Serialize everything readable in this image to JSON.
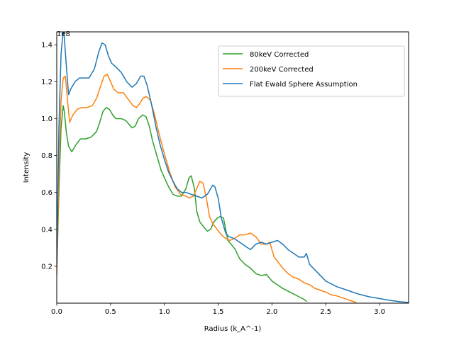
{
  "chart_data": {
    "type": "line",
    "xlabel": "Radius (k_A^-1)",
    "ylabel": "Intensity",
    "offset_label": "1e8",
    "xlim": [
      0,
      3.27
    ],
    "ylim": [
      0,
      1.47
    ],
    "x_ticks": [
      0.0,
      0.5,
      1.0,
      1.5,
      2.0,
      2.5,
      3.0
    ],
    "x_tick_labels": [
      "0.0",
      "0.5",
      "1.0",
      "1.5",
      "2.0",
      "2.5",
      "3.0"
    ],
    "y_ticks": [
      0.2,
      0.4,
      0.6,
      0.8,
      1.0,
      1.2,
      1.4
    ],
    "y_tick_labels": [
      "0.2",
      "0.4",
      "0.6",
      "0.8",
      "1.0",
      "1.2",
      "1.4"
    ],
    "grid": false,
    "legend_position": "top-right",
    "series": [
      {
        "name": "80keV Corrected",
        "color": "#2ca02c",
        "x": [
          0.0,
          0.02,
          0.04,
          0.06,
          0.07,
          0.09,
          0.11,
          0.14,
          0.18,
          0.22,
          0.27,
          0.32,
          0.37,
          0.4,
          0.43,
          0.46,
          0.49,
          0.52,
          0.55,
          0.6,
          0.64,
          0.67,
          0.7,
          0.73,
          0.76,
          0.8,
          0.83,
          0.86,
          0.89,
          0.93,
          0.97,
          1.0,
          1.04,
          1.08,
          1.12,
          1.16,
          1.2,
          1.23,
          1.25,
          1.28,
          1.3,
          1.33,
          1.37,
          1.4,
          1.43,
          1.46,
          1.49,
          1.52,
          1.55,
          1.57,
          1.59,
          1.62,
          1.66,
          1.7,
          1.75,
          1.8,
          1.85,
          1.9,
          1.95,
          2.0,
          2.05,
          2.1,
          2.15,
          2.2,
          2.25,
          2.3,
          2.32
        ],
        "y": [
          0.16,
          0.6,
          0.95,
          1.07,
          1.04,
          0.92,
          0.85,
          0.82,
          0.86,
          0.89,
          0.89,
          0.9,
          0.93,
          0.98,
          1.04,
          1.06,
          1.05,
          1.02,
          1.0,
          1.0,
          0.99,
          0.97,
          0.95,
          0.96,
          1.0,
          1.02,
          1.01,
          0.96,
          0.88,
          0.8,
          0.72,
          0.68,
          0.63,
          0.59,
          0.58,
          0.58,
          0.62,
          0.68,
          0.69,
          0.62,
          0.5,
          0.44,
          0.41,
          0.39,
          0.4,
          0.44,
          0.46,
          0.47,
          0.46,
          0.4,
          0.34,
          0.32,
          0.29,
          0.24,
          0.21,
          0.19,
          0.16,
          0.15,
          0.155,
          0.12,
          0.1,
          0.08,
          0.065,
          0.05,
          0.035,
          0.02,
          0.01
        ]
      },
      {
        "name": "200keV Corrected",
        "color": "#ff7f0e",
        "x": [
          0.0,
          0.02,
          0.04,
          0.06,
          0.08,
          0.1,
          0.12,
          0.15,
          0.19,
          0.23,
          0.28,
          0.33,
          0.37,
          0.41,
          0.44,
          0.47,
          0.5,
          0.53,
          0.57,
          0.62,
          0.67,
          0.71,
          0.74,
          0.77,
          0.8,
          0.83,
          0.87,
          0.91,
          0.95,
          1.0,
          1.05,
          1.1,
          1.15,
          1.2,
          1.23,
          1.27,
          1.3,
          1.33,
          1.36,
          1.39,
          1.42,
          1.45,
          1.49,
          1.53,
          1.57,
          1.61,
          1.65,
          1.7,
          1.75,
          1.8,
          1.85,
          1.9,
          1.95,
          1.98,
          2.02,
          2.06,
          2.1,
          2.15,
          2.2,
          2.25,
          2.3,
          2.35,
          2.4,
          2.45,
          2.5,
          2.55,
          2.6,
          2.65,
          2.7,
          2.75,
          2.78
        ],
        "y": [
          0.15,
          0.7,
          1.1,
          1.22,
          1.23,
          1.1,
          0.98,
          1.02,
          1.05,
          1.06,
          1.06,
          1.07,
          1.11,
          1.18,
          1.23,
          1.24,
          1.2,
          1.16,
          1.14,
          1.14,
          1.1,
          1.07,
          1.06,
          1.08,
          1.11,
          1.12,
          1.1,
          1.02,
          0.92,
          0.81,
          0.71,
          0.63,
          0.59,
          0.58,
          0.57,
          0.58,
          0.62,
          0.66,
          0.65,
          0.57,
          0.47,
          0.43,
          0.4,
          0.37,
          0.35,
          0.34,
          0.35,
          0.37,
          0.37,
          0.38,
          0.36,
          0.32,
          0.32,
          0.33,
          0.25,
          0.22,
          0.19,
          0.16,
          0.14,
          0.13,
          0.11,
          0.1,
          0.08,
          0.07,
          0.06,
          0.045,
          0.04,
          0.03,
          0.02,
          0.01,
          0.005
        ]
      },
      {
        "name": "Flat Ewald Sphere Assumption",
        "color": "#1f77b4",
        "x": [
          0.0,
          0.02,
          0.04,
          0.06,
          0.07,
          0.09,
          0.11,
          0.13,
          0.17,
          0.21,
          0.25,
          0.3,
          0.35,
          0.39,
          0.42,
          0.45,
          0.48,
          0.51,
          0.55,
          0.6,
          0.65,
          0.7,
          0.74,
          0.78,
          0.81,
          0.84,
          0.88,
          0.92,
          0.96,
          1.0,
          1.04,
          1.08,
          1.12,
          1.16,
          1.2,
          1.25,
          1.3,
          1.35,
          1.4,
          1.45,
          1.47,
          1.5,
          1.53,
          1.57,
          1.6,
          1.65,
          1.7,
          1.75,
          1.8,
          1.85,
          1.9,
          1.95,
          2.0,
          2.05,
          2.1,
          2.15,
          2.2,
          2.25,
          2.3,
          2.32,
          2.35,
          2.4,
          2.45,
          2.5,
          2.6,
          2.7,
          2.8,
          2.9,
          3.0,
          3.1,
          3.2,
          3.27
        ],
        "y": [
          0.2,
          0.95,
          1.35,
          1.48,
          1.44,
          1.28,
          1.13,
          1.16,
          1.2,
          1.22,
          1.22,
          1.22,
          1.27,
          1.36,
          1.41,
          1.4,
          1.34,
          1.3,
          1.28,
          1.25,
          1.2,
          1.17,
          1.19,
          1.23,
          1.23,
          1.18,
          1.08,
          0.96,
          0.86,
          0.78,
          0.71,
          0.66,
          0.62,
          0.6,
          0.6,
          0.59,
          0.58,
          0.57,
          0.59,
          0.64,
          0.63,
          0.57,
          0.46,
          0.38,
          0.36,
          0.35,
          0.33,
          0.31,
          0.29,
          0.32,
          0.33,
          0.32,
          0.33,
          0.34,
          0.32,
          0.29,
          0.27,
          0.25,
          0.25,
          0.27,
          0.21,
          0.18,
          0.15,
          0.12,
          0.09,
          0.07,
          0.05,
          0.035,
          0.025,
          0.015,
          0.007,
          0.004
        ]
      }
    ]
  }
}
